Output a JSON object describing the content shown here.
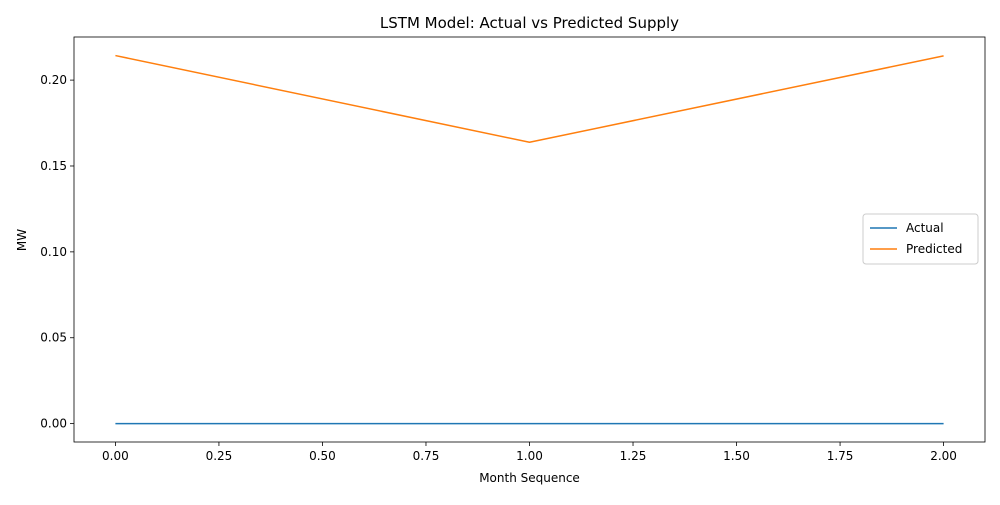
{
  "chart_data": {
    "type": "line",
    "title": "LSTM Model: Actual vs Predicted Supply",
    "xlabel": "Month Sequence",
    "ylabel": "MW",
    "xlim": [
      -0.1,
      2.1
    ],
    "ylim": [
      -0.0107,
      0.2251
    ],
    "x_ticks": [
      0.0,
      0.25,
      0.5,
      0.75,
      1.0,
      1.25,
      1.5,
      1.75,
      2.0
    ],
    "x_tick_labels": [
      "0.00",
      "0.25",
      "0.50",
      "0.75",
      "1.00",
      "1.25",
      "1.50",
      "1.75",
      "2.00"
    ],
    "y_ticks": [
      0.0,
      0.05,
      0.1,
      0.15,
      0.2
    ],
    "y_tick_labels": [
      "0.00",
      "0.05",
      "0.10",
      "0.15",
      "0.20"
    ],
    "grid": false,
    "legend_position": "right",
    "x": [
      0,
      1,
      2
    ],
    "series": [
      {
        "name": "Actual",
        "values": [
          0.0,
          0.0,
          0.0
        ],
        "color": "#1f77b4"
      },
      {
        "name": "Predicted",
        "values": [
          0.2143,
          0.1638,
          0.2141
        ],
        "color": "#ff7f0e"
      }
    ]
  }
}
